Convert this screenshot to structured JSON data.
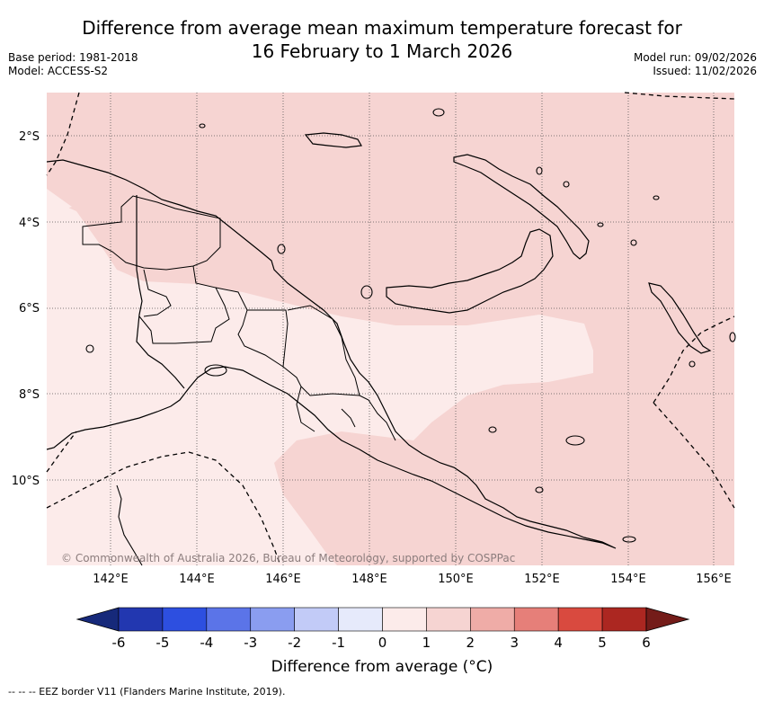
{
  "title_line1": "Difference from average mean maximum temperature forecast for",
  "title_line2": "16 February to 1 March 2026",
  "meta_left": {
    "base_period": "Base period: 1981-2018",
    "model": "Model: ACCESS-S2"
  },
  "meta_right": {
    "model_run": "Model run: 09/02/2026",
    "issued": "Issued: 11/02/2026"
  },
  "map": {
    "lat_labels": [
      "2°S",
      "4°S",
      "6°S",
      "8°S",
      "10°S"
    ],
    "lon_labels": [
      "142°E",
      "144°E",
      "146°E",
      "148°E",
      "150°E",
      "152°E",
      "154°E",
      "156°E"
    ],
    "region_colors": {
      "warm_1_2": "#f6d4d2",
      "warm_0_1": "#fcebea",
      "ocean_pale": "#fdf1f0"
    },
    "copyright": "© Commonwealth of Australia 2026, Bureau of Meteorology, supported by COSPPac"
  },
  "colorbar": {
    "ticks": [
      "-6",
      "-5",
      "-4",
      "-3",
      "-2",
      "-1",
      "0",
      "1",
      "2",
      "3",
      "4",
      "5",
      "6"
    ],
    "colors": [
      "#16297a",
      "#2237b0",
      "#2d4fe0",
      "#5b74e8",
      "#8a9df0",
      "#c2cbf7",
      "#e6eafb",
      "#fcebea",
      "#f6d4d2",
      "#efaca7",
      "#e67f79",
      "#d94a3f",
      "#ac2721",
      "#741c19"
    ],
    "label": "Difference from average (°C)"
  },
  "footnote": "--  --  -- EEZ border V11 (Flanders Marine Institute, 2019)."
}
